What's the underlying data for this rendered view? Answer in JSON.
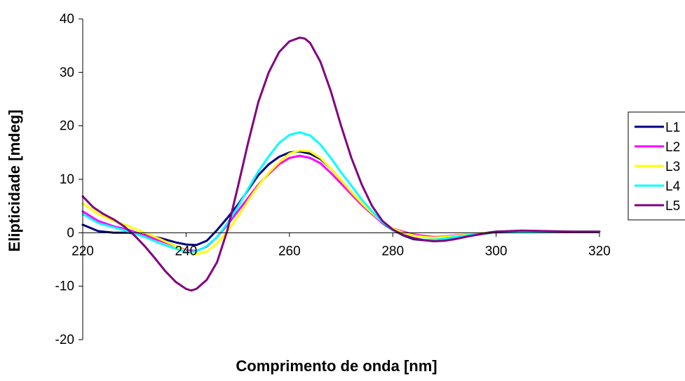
{
  "chart_data": {
    "type": "line",
    "title": "",
    "xlabel": "Comprimento de onda [nm]",
    "ylabel": "Elipticidade [mdeg]",
    "xlim": [
      220,
      320
    ],
    "ylim": [
      -20,
      40
    ],
    "xticks": [
      220,
      240,
      260,
      280,
      300,
      320
    ],
    "yticks": [
      -20,
      -10,
      0,
      10,
      20,
      30,
      40
    ],
    "grid": false,
    "legend_position": "right",
    "series": [
      {
        "name": "L1",
        "color": "#000080",
        "x": [
          220,
          223,
          226,
          229,
          232,
          235,
          238,
          240,
          242,
          244,
          246,
          248,
          250,
          252,
          254,
          256,
          258,
          260,
          262,
          264,
          266,
          268,
          270,
          272,
          274,
          276,
          278,
          280,
          282,
          284,
          286,
          288,
          290,
          292,
          295,
          300,
          305,
          310,
          315,
          320
        ],
        "y": [
          1.5,
          0.3,
          0.0,
          0.0,
          -0.4,
          -1.0,
          -1.8,
          -2.2,
          -2.3,
          -1.5,
          0.5,
          2.8,
          5.2,
          8.0,
          10.8,
          12.8,
          14.2,
          15.0,
          15.2,
          14.8,
          13.8,
          12.0,
          9.8,
          7.6,
          5.5,
          3.6,
          1.8,
          0.5,
          -0.5,
          -1.2,
          -1.4,
          -1.4,
          -1.2,
          -0.8,
          -0.4,
          0.2,
          0.3,
          0.2,
          0.2,
          0.2
        ]
      },
      {
        "name": "L2",
        "color": "#FF00FF",
        "x": [
          220,
          223,
          226,
          229,
          232,
          235,
          238,
          240,
          242,
          244,
          246,
          248,
          250,
          252,
          254,
          256,
          258,
          260,
          262,
          264,
          266,
          268,
          270,
          272,
          274,
          276,
          278,
          280,
          282,
          284,
          286,
          288,
          290,
          292,
          295,
          300,
          305,
          310,
          315,
          320
        ],
        "y": [
          4.0,
          2.2,
          1.2,
          0.5,
          -0.5,
          -1.5,
          -2.5,
          -3.3,
          -3.4,
          -2.6,
          -0.8,
          1.5,
          4.0,
          6.5,
          9.0,
          11.0,
          12.8,
          14.0,
          14.4,
          14.0,
          13.0,
          11.2,
          9.2,
          7.2,
          5.2,
          3.5,
          1.8,
          0.8,
          0.2,
          -0.3,
          -0.6,
          -0.8,
          -0.7,
          -0.5,
          -0.3,
          0.1,
          0.3,
          0.2,
          0.2,
          0.2
        ]
      },
      {
        "name": "L3",
        "color": "#FFFF00",
        "x": [
          220,
          223,
          226,
          229,
          232,
          235,
          238,
          240,
          242,
          244,
          246,
          248,
          250,
          252,
          254,
          256,
          258,
          260,
          262,
          264,
          266,
          268,
          270,
          272,
          274,
          276,
          278,
          280,
          282,
          284,
          286,
          288,
          290,
          292,
          295,
          300,
          305,
          310,
          315,
          320
        ],
        "y": [
          5.5,
          3.5,
          2.2,
          1.2,
          0.0,
          -1.2,
          -2.5,
          -3.5,
          -4.0,
          -3.5,
          -2.0,
          0.3,
          3.0,
          6.0,
          8.8,
          11.2,
          13.2,
          14.8,
          15.4,
          15.2,
          14.0,
          12.0,
          9.8,
          7.6,
          5.5,
          3.7,
          2.0,
          0.8,
          0.0,
          -0.5,
          -0.8,
          -0.9,
          -0.8,
          -0.6,
          -0.3,
          0.1,
          0.3,
          0.2,
          0.2,
          0.2
        ]
      },
      {
        "name": "L4",
        "color": "#00FFFF",
        "x": [
          220,
          223,
          226,
          229,
          232,
          235,
          238,
          240,
          242,
          244,
          246,
          248,
          250,
          252,
          254,
          256,
          258,
          260,
          262,
          264,
          266,
          268,
          270,
          272,
          274,
          276,
          278,
          280,
          282,
          284,
          286,
          288,
          290,
          292,
          295,
          300,
          305,
          310,
          315,
          320
        ],
        "y": [
          3.5,
          1.8,
          1.0,
          0.2,
          -0.8,
          -2.0,
          -3.0,
          -3.6,
          -3.5,
          -2.5,
          -0.8,
          1.8,
          4.8,
          8.2,
          11.5,
          14.3,
          16.8,
          18.3,
          18.8,
          18.2,
          16.5,
          14.0,
          11.3,
          8.8,
          6.2,
          4.0,
          2.0,
          0.5,
          -0.4,
          -1.0,
          -1.3,
          -1.3,
          -1.1,
          -0.8,
          -0.4,
          0.0,
          0.2,
          0.2,
          0.2,
          0.2
        ]
      },
      {
        "name": "L5",
        "color": "#800080",
        "x": [
          220,
          222,
          224,
          226,
          228,
          230,
          232,
          234,
          236,
          238,
          240,
          241,
          242,
          244,
          246,
          248,
          250,
          252,
          254,
          256,
          258,
          260,
          262,
          263,
          264,
          266,
          268,
          270,
          272,
          274,
          276,
          278,
          280,
          282,
          284,
          286,
          288,
          290,
          292,
          295,
          300,
          305,
          310,
          315,
          320
        ],
        "y": [
          6.8,
          4.8,
          3.5,
          2.5,
          1.2,
          -0.5,
          -2.5,
          -4.8,
          -7.2,
          -9.2,
          -10.5,
          -10.8,
          -10.5,
          -8.8,
          -5.5,
          0.5,
          8.5,
          16.8,
          24.5,
          30.0,
          33.8,
          35.8,
          36.5,
          36.3,
          35.5,
          32.0,
          26.5,
          20.0,
          14.0,
          9.0,
          5.0,
          2.2,
          0.6,
          -0.4,
          -1.0,
          -1.4,
          -1.6,
          -1.5,
          -1.2,
          -0.6,
          0.2,
          0.4,
          0.3,
          0.2,
          0.2
        ]
      }
    ]
  }
}
